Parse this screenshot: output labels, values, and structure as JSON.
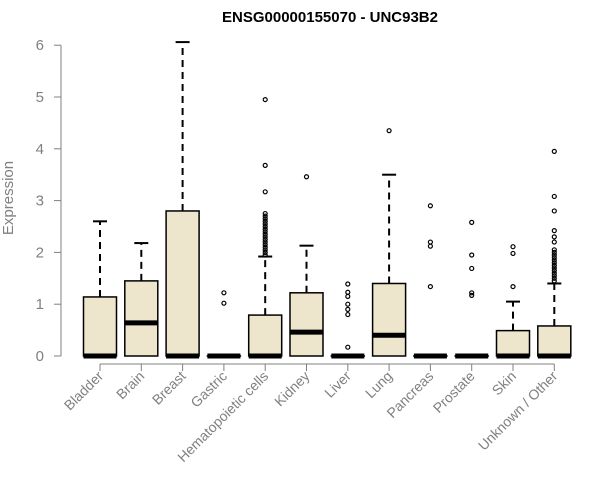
{
  "chart_data": {
    "type": "boxplot",
    "title": "ENSG00000155070 - UNC93B2",
    "xlabel": "",
    "ylabel": "Expression",
    "ylim": [
      0,
      6
    ],
    "yticks": [
      0,
      1,
      2,
      3,
      4,
      5,
      6
    ],
    "grid": false,
    "colors": {
      "box_fill": "#ede6cc",
      "box_stroke": "#000000",
      "axis": "#808080",
      "text": "#808080"
    },
    "categories": [
      "Bladder",
      "Brain",
      "Breast",
      "Gastric",
      "Hematopoietic cells",
      "Kidney",
      "Liver",
      "Lung",
      "Pancreas",
      "Prostate",
      "Skin",
      "Unknown / Other"
    ],
    "boxes": [
      {
        "q1": 0,
        "median": 0,
        "q3": 1.14,
        "whisker_low": 0,
        "whisker_high": 2.6,
        "outliers": []
      },
      {
        "q1": 0,
        "median": 0.64,
        "q3": 1.45,
        "whisker_low": 0,
        "whisker_high": 2.18,
        "outliers": []
      },
      {
        "q1": 0,
        "median": 0,
        "q3": 2.8,
        "whisker_low": 0,
        "whisker_high": 6.06,
        "outliers": []
      },
      {
        "q1": 0,
        "median": 0,
        "q3": 0,
        "whisker_low": 0,
        "whisker_high": 0,
        "outliers": [
          1.02,
          1.22
        ]
      },
      {
        "q1": 0,
        "median": 0,
        "q3": 0.79,
        "whisker_low": 0,
        "whisker_high": 1.92,
        "outliers": [
          1.95,
          2.0,
          2.05,
          2.1,
          2.15,
          2.2,
          2.25,
          2.3,
          2.35,
          2.4,
          2.45,
          2.5,
          2.55,
          2.6,
          2.65,
          2.7,
          2.75,
          3.17,
          3.68,
          4.95
        ]
      },
      {
        "q1": 0,
        "median": 0.46,
        "q3": 1.22,
        "whisker_low": 0,
        "whisker_high": 2.13,
        "outliers": [
          3.46
        ]
      },
      {
        "q1": 0,
        "median": 0,
        "q3": 0,
        "whisker_low": 0,
        "whisker_high": 0,
        "outliers": [
          0.17,
          0.8,
          0.9,
          1.0,
          1.15,
          1.23,
          1.39
        ]
      },
      {
        "q1": 0,
        "median": 0.4,
        "q3": 1.4,
        "whisker_low": 0,
        "whisker_high": 3.5,
        "outliers": [
          4.35
        ]
      },
      {
        "q1": 0,
        "median": 0,
        "q3": 0,
        "whisker_low": 0,
        "whisker_high": 0,
        "outliers": [
          1.34,
          2.12,
          2.2,
          2.9
        ]
      },
      {
        "q1": 0,
        "median": 0,
        "q3": 0,
        "whisker_low": 0,
        "whisker_high": 0,
        "outliers": [
          1.17,
          1.22,
          1.69,
          1.95,
          2.58
        ]
      },
      {
        "q1": 0,
        "median": 0,
        "q3": 0.49,
        "whisker_low": 0,
        "whisker_high": 1.05,
        "outliers": [
          1.34,
          1.98,
          2.11
        ]
      },
      {
        "q1": 0,
        "median": 0,
        "q3": 0.58,
        "whisker_low": 0,
        "whisker_high": 1.4,
        "outliers": [
          1.45,
          1.5,
          1.55,
          1.6,
          1.65,
          1.7,
          1.75,
          1.8,
          1.85,
          1.9,
          1.95,
          2.0,
          2.05,
          2.2,
          2.3,
          2.42,
          2.8,
          3.08,
          3.95
        ]
      }
    ]
  }
}
